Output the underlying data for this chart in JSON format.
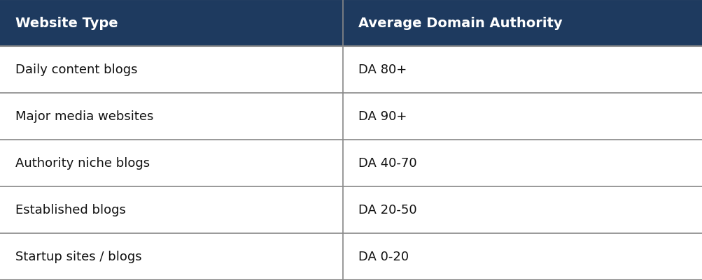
{
  "header": [
    "Website Type",
    "Average Domain Authority"
  ],
  "rows": [
    [
      "Daily content blogs",
      "DA 80+"
    ],
    [
      "Major media websites",
      "DA 90+"
    ],
    [
      "Authority niche blogs",
      "DA 40-70"
    ],
    [
      "Established blogs",
      "DA 20-50"
    ],
    [
      "Startup sites / blogs",
      "DA 0-20"
    ]
  ],
  "header_bg_color": "#1e3a5f",
  "header_text_color": "#ffffff",
  "row_bg_color": "#ffffff",
  "row_text_color": "#111111",
  "border_color": "#888888",
  "col_split": 0.488,
  "header_fontsize": 14,
  "row_fontsize": 13,
  "outer_border_color": "#555555",
  "figw": 10.04,
  "figh": 4.02,
  "dpi": 100
}
